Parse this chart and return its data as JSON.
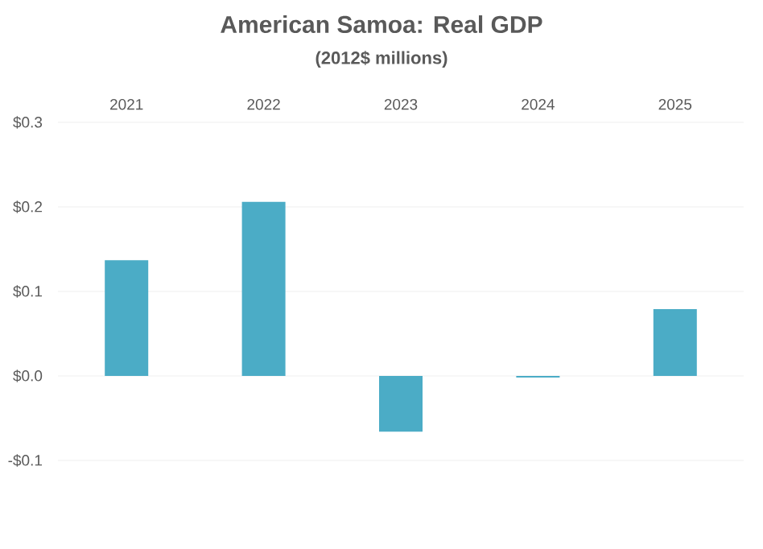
{
  "chart_data": {
    "type": "bar",
    "title": "American Samoa: Real GDP",
    "subtitle": "(2012$ millions)",
    "categories": [
      "2021",
      "2022",
      "2023",
      "2024",
      "2025"
    ],
    "values": [
      0.137,
      0.206,
      -0.066,
      -0.002,
      0.079
    ],
    "color": "#4bacc6",
    "ylim": [
      -0.1,
      0.3
    ],
    "yticks": [
      {
        "value": -0.1,
        "label": "-$0.1"
      },
      {
        "value": 0.0,
        "label": "$0.0"
      },
      {
        "value": 0.1,
        "label": "$0.1"
      },
      {
        "value": 0.2,
        "label": "$0.2"
      },
      {
        "value": 0.3,
        "label": "$0.3"
      }
    ],
    "grid": "y"
  }
}
